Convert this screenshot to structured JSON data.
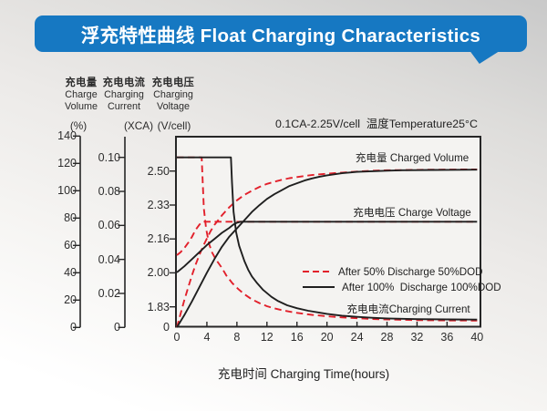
{
  "banner": {
    "title": "浮充特性曲线 Float Charging Characteristics",
    "bg_color": "#1678c2",
    "text_color": "#ffffff"
  },
  "axis_headers": [
    {
      "cn": "充电量",
      "en1": "Charge",
      "en2": "Volume",
      "unit": "(%)"
    },
    {
      "cn": "充电电流",
      "en1": "Charging",
      "en2": "Current",
      "unit": "(XCA)"
    },
    {
      "cn": "充电电压",
      "en1": "Charging",
      "en2": "Voltage",
      "unit": "(V/cell)"
    }
  ],
  "chart": {
    "condition_label": "0.1CA-2.25V/cell  温度Temperature25°C",
    "xlabel": "充电时间 Charging Time(hours)",
    "curve_labels": {
      "volume": "充电量 Charged Volume",
      "voltage": "充电电压 Charge Voltage",
      "current": "充电电流Charging Current"
    },
    "legend": [
      {
        "label": "After 50% Discharge 50%DOD",
        "style": "dashed",
        "color": "#e2202b"
      },
      {
        "label": "After 100%  Discharge 100%DOD",
        "style": "solid",
        "color": "#1f1f1f"
      }
    ],
    "colors": {
      "red": "#e2202b",
      "black": "#1f1f1f",
      "plot_bg": "#f4f3f1",
      "axis": "#262626"
    }
  },
  "chart_data": {
    "type": "line",
    "title": "浮充特性曲线 Float Charging Characteristics",
    "condition": "0.1CA-2.25V/cell 温度Temperature25°C",
    "xlabel": "充电时间 Charging Time(hours)",
    "x_range": [
      0,
      40
    ],
    "x_ticks": [
      0,
      4,
      8,
      12,
      16,
      20,
      24,
      28,
      32,
      36,
      40
    ],
    "axes": {
      "charge_volume_pct": {
        "label": "充电量 Charge Volume (%)",
        "tick_labels": [
          "0",
          "20",
          "40",
          "60",
          "80",
          "100",
          "120",
          "140"
        ],
        "range": [
          0,
          140
        ]
      },
      "charging_current_xca": {
        "label": "充电电流 Charging Current (XCA)",
        "tick_labels": [
          "0",
          "0.02",
          "0.04",
          "0.06",
          "0.08",
          "0.10"
        ],
        "range": [
          0,
          0.1
        ]
      },
      "charging_voltage_vcell": {
        "label": "充电电压 Charging Voltage (V/cell)",
        "tick_labels": [
          "0",
          "1.83",
          "2.00",
          "2.16",
          "2.33",
          "2.50"
        ],
        "range": [
          1.83,
          2.5
        ],
        "broken_axis_zero": true
      }
    },
    "series": [
      {
        "name": "charged-volume-50dod",
        "group": "充电量 Charged Volume",
        "dod": "50%",
        "style": "dashed",
        "color": "#e2202b",
        "axis": "pct",
        "points": [
          [
            0,
            0
          ],
          [
            0.5,
            10
          ],
          [
            1,
            20
          ],
          [
            1.5,
            29
          ],
          [
            2,
            38
          ],
          [
            2.5,
            46
          ],
          [
            3,
            53
          ],
          [
            3.5,
            59.5
          ],
          [
            4,
            65
          ],
          [
            4.5,
            70.5
          ],
          [
            5,
            75
          ],
          [
            5.5,
            78.5
          ],
          [
            6,
            82
          ],
          [
            6.5,
            85
          ],
          [
            7,
            88
          ],
          [
            7.5,
            90.5
          ],
          [
            8,
            93
          ],
          [
            8.5,
            95
          ],
          [
            9,
            97
          ],
          [
            9.5,
            98.5
          ],
          [
            10,
            100
          ],
          [
            11,
            102.8
          ],
          [
            12,
            105
          ],
          [
            13,
            106.6
          ],
          [
            14,
            108
          ],
          [
            15,
            109.2
          ],
          [
            16,
            110
          ],
          [
            17,
            110.8
          ],
          [
            18,
            111.5
          ],
          [
            19,
            112
          ],
          [
            20,
            112.5
          ],
          [
            22,
            113.3
          ],
          [
            24,
            114
          ],
          [
            26,
            114.6
          ],
          [
            28,
            115
          ],
          [
            30,
            115.1
          ],
          [
            32,
            115.3
          ],
          [
            34,
            115.4
          ],
          [
            36,
            115.5
          ],
          [
            38,
            115.55
          ],
          [
            40,
            115.6
          ]
        ]
      },
      {
        "name": "charge-voltage-50dod",
        "group": "充电电压 Charge Voltage",
        "dod": "50%",
        "style": "dashed",
        "color": "#e2202b",
        "axis": "vcell",
        "points": [
          [
            0,
            2.085
          ],
          [
            0.5,
            2.1
          ],
          [
            1,
            2.12
          ],
          [
            1.5,
            2.145
          ],
          [
            2,
            2.175
          ],
          [
            2.5,
            2.21
          ],
          [
            3,
            2.235
          ],
          [
            3.3,
            2.248
          ],
          [
            3.6,
            2.25
          ],
          [
            40,
            2.25
          ]
        ]
      },
      {
        "name": "charging-current-50dod",
        "group": "充电电流 Charging Current",
        "dod": "50%",
        "style": "dashed",
        "color": "#e2202b",
        "axis": "xca",
        "points": [
          [
            0,
            0.1
          ],
          [
            3.3,
            0.1
          ],
          [
            3.45,
            0.085
          ],
          [
            3.6,
            0.07
          ],
          [
            3.9,
            0.058
          ],
          [
            4.3,
            0.049
          ],
          [
            4.7,
            0.044
          ],
          [
            5.2,
            0.04
          ],
          [
            6,
            0.035
          ],
          [
            6.6,
            0.0305
          ],
          [
            7.4,
            0.026
          ],
          [
            8.2,
            0.0225
          ],
          [
            9,
            0.0195
          ],
          [
            10,
            0.0165
          ],
          [
            11,
            0.0143
          ],
          [
            12,
            0.0125
          ],
          [
            13,
            0.0112
          ],
          [
            14,
            0.0102
          ],
          [
            15,
            0.0093
          ],
          [
            16,
            0.0086
          ],
          [
            18,
            0.0074
          ],
          [
            20,
            0.0066
          ],
          [
            22,
            0.0059
          ],
          [
            24,
            0.0054
          ],
          [
            26,
            0.005
          ],
          [
            28,
            0.0047
          ],
          [
            32,
            0.0043
          ],
          [
            36,
            0.0041
          ],
          [
            40,
            0.004
          ]
        ]
      },
      {
        "name": "charged-volume-100dod",
        "group": "充电量 Charged Volume",
        "dod": "100%",
        "style": "solid",
        "color": "#1f1f1f",
        "axis": "pct",
        "points": [
          [
            0,
            0
          ],
          [
            1,
            9
          ],
          [
            2,
            19
          ],
          [
            3,
            29.5
          ],
          [
            4,
            40
          ],
          [
            5,
            50
          ],
          [
            6,
            59
          ],
          [
            7,
            66.5
          ],
          [
            8,
            72.5
          ],
          [
            9,
            78.5
          ],
          [
            10,
            84.5
          ],
          [
            11,
            89.5
          ],
          [
            12,
            94
          ],
          [
            13,
            97.5
          ],
          [
            14,
            100.5
          ],
          [
            15,
            103.5
          ],
          [
            16,
            105.5
          ],
          [
            17,
            107.5
          ],
          [
            18,
            109
          ],
          [
            19,
            110.3
          ],
          [
            20,
            111.3
          ],
          [
            22,
            112.8
          ],
          [
            24,
            113.8
          ],
          [
            26,
            114.3
          ],
          [
            28,
            114.7
          ],
          [
            30,
            115
          ],
          [
            32,
            115.1
          ],
          [
            34,
            115.2
          ],
          [
            36,
            115.3
          ],
          [
            38,
            115.35
          ],
          [
            40,
            115.4
          ]
        ]
      },
      {
        "name": "charge-voltage-100dod",
        "group": "充电电压 Charge Voltage",
        "dod": "100%",
        "style": "solid",
        "color": "#1f1f1f",
        "axis": "vcell",
        "points": [
          [
            0,
            2.0
          ],
          [
            1,
            2.03
          ],
          [
            2,
            2.065
          ],
          [
            3,
            2.1
          ],
          [
            4,
            2.135
          ],
          [
            5,
            2.165
          ],
          [
            6,
            2.195
          ],
          [
            7,
            2.22
          ],
          [
            7.5,
            2.235
          ],
          [
            8,
            2.245
          ],
          [
            8.5,
            2.25
          ],
          [
            40,
            2.25
          ]
        ]
      },
      {
        "name": "charging-current-100dod",
        "group": "充电电流 Charging Current",
        "dod": "100%",
        "style": "solid",
        "color": "#1f1f1f",
        "axis": "xca",
        "points": [
          [
            0,
            0.1
          ],
          [
            7.2,
            0.1
          ],
          [
            7.35,
            0.085
          ],
          [
            7.55,
            0.068
          ],
          [
            7.9,
            0.056
          ],
          [
            8.3,
            0.048
          ],
          [
            9,
            0.039
          ],
          [
            9.5,
            0.034
          ],
          [
            10,
            0.03
          ],
          [
            10.7,
            0.026
          ],
          [
            11.5,
            0.022
          ],
          [
            12.6,
            0.018
          ],
          [
            13.5,
            0.0155
          ],
          [
            14.7,
            0.013
          ],
          [
            16,
            0.0113
          ],
          [
            17.5,
            0.0098
          ],
          [
            19,
            0.0087
          ],
          [
            20,
            0.008
          ],
          [
            22,
            0.0069
          ],
          [
            24,
            0.0062
          ],
          [
            26,
            0.0057
          ],
          [
            28,
            0.0053
          ],
          [
            32,
            0.0049
          ],
          [
            36,
            0.0047
          ],
          [
            40,
            0.0046
          ]
        ]
      }
    ],
    "legend_entries": [
      "After 50% Discharge 50%DOD",
      "After 100%  Discharge 100%DOD"
    ]
  }
}
